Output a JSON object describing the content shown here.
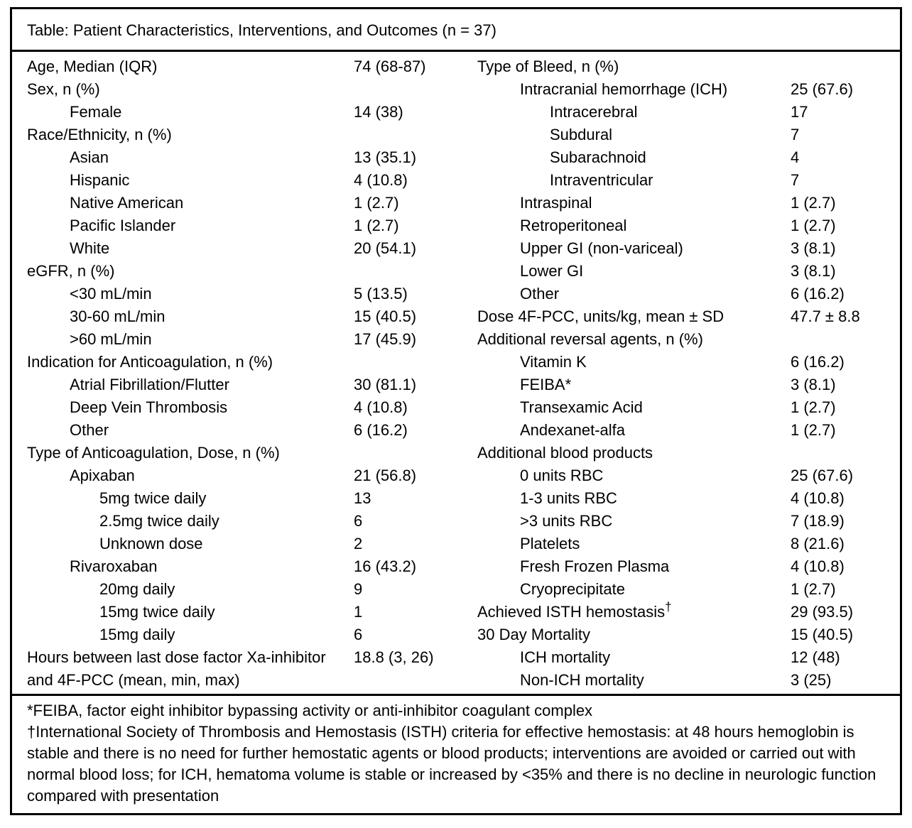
{
  "title": "Table: Patient Characteristics, Interventions, and Outcomes (n = 37)",
  "colors": {
    "border": "#000000",
    "text": "#000000",
    "background": "#ffffff"
  },
  "table": {
    "left_rows": [
      {
        "label": "Age, Median (IQR)",
        "value": "74 (68-87)",
        "indent": 0
      },
      {
        "label": "Sex, n (%)",
        "value": "",
        "indent": 0
      },
      {
        "label": "Female",
        "value": "14 (38)",
        "indent": 1
      },
      {
        "label": "Race/Ethnicity, n (%)",
        "value": "",
        "indent": 0
      },
      {
        "label": "Asian",
        "value": "13 (35.1)",
        "indent": 1
      },
      {
        "label": "Hispanic",
        "value": "4 (10.8)",
        "indent": 1
      },
      {
        "label": "Native American",
        "value": "1 (2.7)",
        "indent": 1
      },
      {
        "label": "Pacific Islander",
        "value": "1 (2.7)",
        "indent": 1
      },
      {
        "label": "White",
        "value": "20 (54.1)",
        "indent": 1
      },
      {
        "label": "eGFR, n (%)",
        "value": "",
        "indent": 0
      },
      {
        "label": "<30 mL/min",
        "value": "5 (13.5)",
        "indent": 1
      },
      {
        "label": "30-60 mL/min",
        "value": "15 (40.5)",
        "indent": 1
      },
      {
        "label": ">60 mL/min",
        "value": "17 (45.9)",
        "indent": 1
      },
      {
        "label": "Indication for Anticoagulation, n (%)",
        "value": "",
        "indent": 0
      },
      {
        "label": "Atrial Fibrillation/Flutter",
        "value": "30 (81.1)",
        "indent": 1
      },
      {
        "label": "Deep Vein Thrombosis",
        "value": "4 (10.8)",
        "indent": 1
      },
      {
        "label": "Other",
        "value": "6 (16.2)",
        "indent": 1
      },
      {
        "label": "Type of Anticoagulation, Dose, n (%)",
        "value": "",
        "indent": 0
      },
      {
        "label": "Apixaban",
        "value": "21 (56.8)",
        "indent": 1
      },
      {
        "label": "5mg twice daily",
        "value": "13",
        "indent": 2
      },
      {
        "label": "2.5mg twice daily",
        "value": "6",
        "indent": 2
      },
      {
        "label": "Unknown dose",
        "value": "2",
        "indent": 2
      },
      {
        "label": "Rivaroxaban",
        "value": "16 (43.2)",
        "indent": 1
      },
      {
        "label": "20mg daily",
        "value": "9",
        "indent": 2
      },
      {
        "label": "15mg twice daily",
        "value": "1",
        "indent": 2
      },
      {
        "label": "15mg daily",
        "value": "6",
        "indent": 2
      },
      {
        "label": "Hours between last dose factor Xa-inhibitor and 4F-PCC (mean, min, max)",
        "value": "18.8 (3, 26)",
        "indent": 0
      }
    ],
    "right_rows": [
      {
        "label": "Type of Bleed, n (%)",
        "value": "",
        "indent": 0
      },
      {
        "label": "Intracranial hemorrhage (ICH)",
        "value": "25 (67.6)",
        "indent": 1
      },
      {
        "label": "Intracerebral",
        "value": "17",
        "indent": 2
      },
      {
        "label": "Subdural",
        "value": "7",
        "indent": 2
      },
      {
        "label": "Subarachnoid",
        "value": "4",
        "indent": 2
      },
      {
        "label": "Intraventricular",
        "value": "7",
        "indent": 2
      },
      {
        "label": "Intraspinal",
        "value": "1 (2.7)",
        "indent": 1
      },
      {
        "label": "Retroperitoneal",
        "value": "1 (2.7)",
        "indent": 1
      },
      {
        "label": "Upper GI (non-variceal)",
        "value": "3 (8.1)",
        "indent": 1
      },
      {
        "label": "Lower GI",
        "value": "3 (8.1)",
        "indent": 1
      },
      {
        "label": "Other",
        "value": "6 (16.2)",
        "indent": 1
      },
      {
        "label": "Dose 4F-PCC, units/kg, mean ± SD",
        "value": "47.7 ± 8.8",
        "indent": 0
      },
      {
        "label": "Additional reversal agents, n (%)",
        "value": "",
        "indent": 0
      },
      {
        "label": "Vitamin K",
        "value": "6 (16.2)",
        "indent": 1
      },
      {
        "label": "FEIBA*",
        "value": "3 (8.1)",
        "indent": 1
      },
      {
        "label": "Transexamic Acid",
        "value": "1 (2.7)",
        "indent": 1
      },
      {
        "label": "Andexanet-alfa",
        "value": "1 (2.7)",
        "indent": 1
      },
      {
        "label": "Additional blood products",
        "value": "",
        "indent": 0
      },
      {
        "label": "0 units RBC",
        "value": "25 (67.6)",
        "indent": 1
      },
      {
        "label": "1-3 units RBC",
        "value": "4 (10.8)",
        "indent": 1
      },
      {
        "label": ">3 units RBC",
        "value": "7 (18.9)",
        "indent": 1
      },
      {
        "label": "Platelets",
        "value": "8 (21.6)",
        "indent": 1
      },
      {
        "label": "Fresh Frozen Plasma",
        "value": "4 (10.8)",
        "indent": 1
      },
      {
        "label": "Cryoprecipitate",
        "value": "1 (2.7)",
        "indent": 1
      },
      {
        "label": "Achieved ISTH hemostasis",
        "sup": "†",
        "value": "29 (93.5)",
        "indent": 0
      },
      {
        "label": "30 Day Mortality",
        "value": "15 (40.5)",
        "indent": 0
      },
      {
        "label": "ICH mortality",
        "value": "12 (48)",
        "indent": 1
      },
      {
        "label": "Non-ICH mortality",
        "value": "3 (25)",
        "indent": 1
      }
    ]
  },
  "footnotes": [
    "*FEIBA, factor eight inhibitor bypassing activity or anti-inhibitor coagulant complex",
    "†International Society of Thrombosis and Hemostasis (ISTH) criteria for effective hemostasis: at 48 hours hemoglobin is stable and there is no need for further hemostatic agents or blood products; interventions are avoided or carried out with normal blood loss; for ICH, hematoma volume is stable or increased by <35% and there is no decline in neurologic function compared with presentation"
  ]
}
